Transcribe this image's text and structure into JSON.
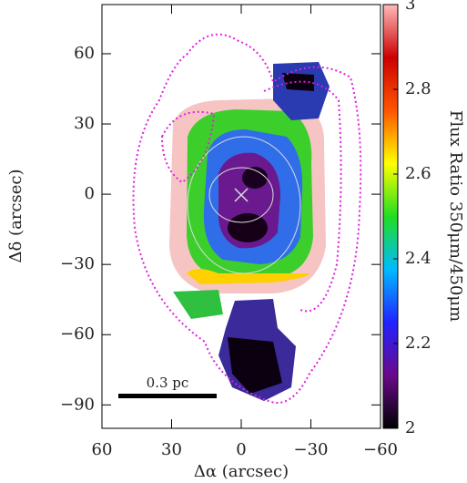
{
  "chart_data": {
    "type": "image-map",
    "xlabel": "Δα (arcsec)",
    "ylabel": "Δδ (arcsec)",
    "colorbar_label": "Flux Ratio 350μm/450μm",
    "scale_bar_label": "0.3 pc",
    "xlim": [
      60,
      -60
    ],
    "ylim": [
      -100,
      81
    ],
    "xticks": [
      60,
      30,
      0,
      {
        "value": -30,
        "label": "−30"
      },
      {
        "value": -60,
        "label": "−60"
      }
    ],
    "yticks": [
      {
        "value": -90,
        "label": "−90"
      },
      {
        "value": -60,
        "label": "−60"
      },
      {
        "value": -30,
        "label": "−30"
      },
      0,
      30,
      60
    ],
    "clim": [
      2,
      3
    ],
    "cticks": [
      2,
      2.2,
      2.4,
      2.6,
      2.8,
      3
    ],
    "colormap": [
      "#000000",
      "#6a0a8a",
      "#2222ff",
      "#00bbff",
      "#22dd22",
      "#ffff00",
      "#ff5500",
      "#cc0000",
      "#ffbbbb"
    ]
  }
}
